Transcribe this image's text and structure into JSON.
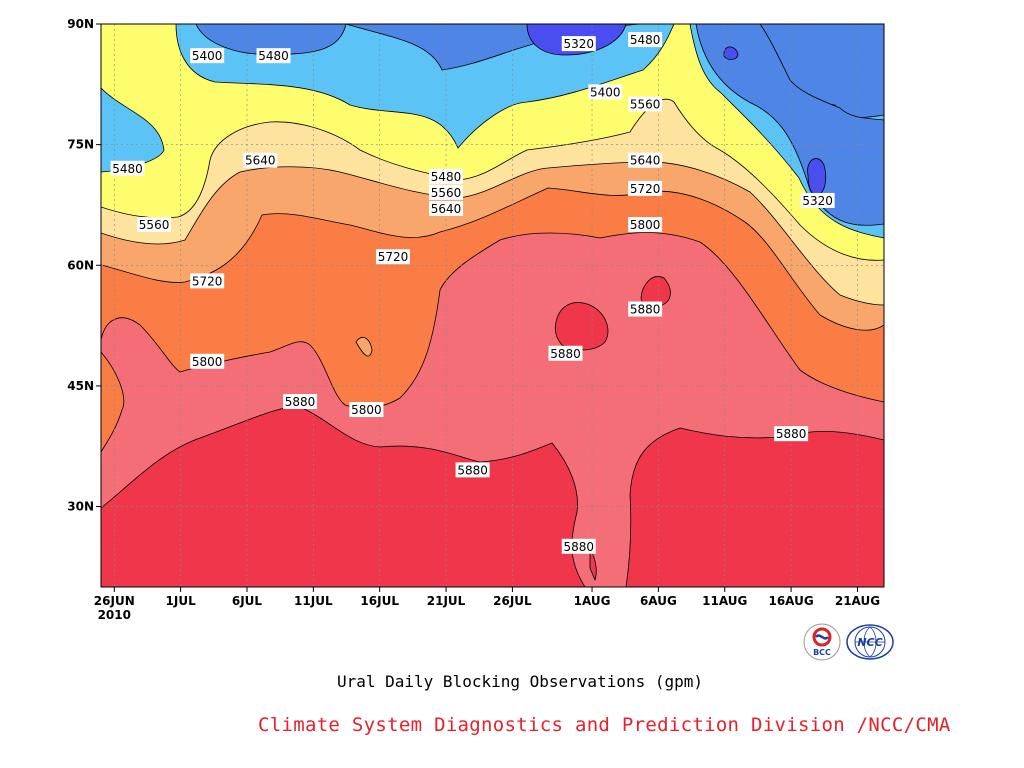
{
  "chart_data": {
    "type": "contour",
    "title": "Ural Daily Blocking Observations (gpm)",
    "xlabel": "",
    "ylabel": "",
    "x_ticks": [
      "26JUN",
      "1JUL",
      "6JUL",
      "11JUL",
      "16JUL",
      "21JUL",
      "26JUL",
      "1AUG",
      "6AUG",
      "11AUG",
      "16AUG",
      "21AUG"
    ],
    "x_year": "2010",
    "y_ticks": [
      "30N",
      "45N",
      "60N",
      "75N",
      "90N"
    ],
    "ylim": [
      20,
      90
    ],
    "xlim": [
      "2010-06-25",
      "2010-08-23"
    ],
    "contour_levels": [
      5320,
      5400,
      5480,
      5560,
      5640,
      5720,
      5800,
      5880
    ],
    "level_colors": {
      "below_5320": "#4a4ef0",
      "5320_5400": "#4f86e6",
      "5400_5480": "#5cc3f7",
      "5480_5560": "#fdfd6e",
      "5560_5640": "#fde39d",
      "5640_5720": "#f9a66c",
      "5720_5800": "#fb7d46",
      "5800_5880": "#f46e78",
      "above_5880": "#f0364a"
    },
    "contour_labels": [
      {
        "text": "5400",
        "date": "2010-07-03",
        "lat": 86
      },
      {
        "text": "5480",
        "date": "2010-07-08",
        "lat": 86
      },
      {
        "text": "5320",
        "date": "2010-07-31",
        "lat": 87.5
      },
      {
        "text": "5480",
        "date": "2010-08-05",
        "lat": 88
      },
      {
        "text": "5400",
        "date": "2010-08-02",
        "lat": 81.5
      },
      {
        "text": "5560",
        "date": "2010-08-05",
        "lat": 80
      },
      {
        "text": "5480",
        "date": "2010-06-27",
        "lat": 72
      },
      {
        "text": "5640",
        "date": "2010-07-07",
        "lat": 73
      },
      {
        "text": "5480",
        "date": "2010-07-21",
        "lat": 71
      },
      {
        "text": "5560",
        "date": "2010-07-21",
        "lat": 69
      },
      {
        "text": "5640",
        "date": "2010-07-21",
        "lat": 67
      },
      {
        "text": "5640",
        "date": "2010-08-05",
        "lat": 73
      },
      {
        "text": "5720",
        "date": "2010-08-05",
        "lat": 69.5
      },
      {
        "text": "5320",
        "date": "2010-08-18",
        "lat": 68
      },
      {
        "text": "5560",
        "date": "2010-06-29",
        "lat": 65
      },
      {
        "text": "5800",
        "date": "2010-08-05",
        "lat": 65
      },
      {
        "text": "5720",
        "date": "2010-07-17",
        "lat": 61
      },
      {
        "text": "5720",
        "date": "2010-07-03",
        "lat": 58
      },
      {
        "text": "5880",
        "date": "2010-08-05",
        "lat": 54.5
      },
      {
        "text": "5800",
        "date": "2010-07-03",
        "lat": 48
      },
      {
        "text": "5880",
        "date": "2010-07-30",
        "lat": 49
      },
      {
        "text": "5880",
        "date": "2010-07-10",
        "lat": 43
      },
      {
        "text": "5800",
        "date": "2010-07-15",
        "lat": 42
      },
      {
        "text": "5880",
        "date": "2010-08-16",
        "lat": 39
      },
      {
        "text": "5880",
        "date": "2010-07-23",
        "lat": 34.5
      },
      {
        "text": "5880",
        "date": "2010-07-31",
        "lat": 25
      }
    ]
  },
  "footer": {
    "text": "Climate System Diagnostics and Prediction Division /NCC/CMA",
    "color": "#e8202a"
  },
  "logos": {
    "bcc_text": "BCC",
    "ncc_text": "NCC"
  }
}
